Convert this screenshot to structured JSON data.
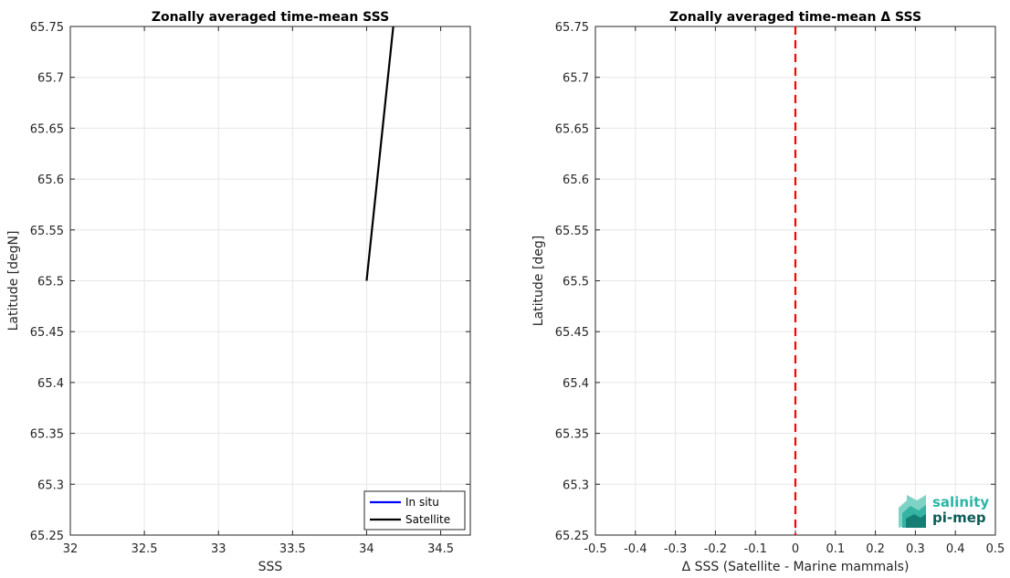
{
  "chart_data": [
    {
      "type": "line",
      "title": "Zonally averaged time-mean SSS",
      "xlabel": "SSS",
      "ylabel": "Latitude [degN]",
      "xlim": [
        32,
        34.7
      ],
      "ylim": [
        65.25,
        65.75
      ],
      "xticks": [
        "32",
        "32.5",
        "33",
        "33.5",
        "34",
        "34.5"
      ],
      "yticks": [
        "65.25",
        "65.3",
        "65.35",
        "65.4",
        "65.45",
        "65.5",
        "65.55",
        "65.6",
        "65.65",
        "65.7",
        "65.75"
      ],
      "grid": true,
      "legend_position": "bottom-right",
      "series": [
        {
          "name": "In situ",
          "color": "#0000ff",
          "points": []
        },
        {
          "name": "Satellite",
          "color": "#000000",
          "points": [
            [
              34.0,
              65.5
            ],
            [
              34.18,
              65.75
            ]
          ]
        }
      ]
    },
    {
      "type": "line",
      "title": "Zonally averaged time-mean Δ SSS",
      "xlabel": "Δ SSS (Satellite - Marine mammals)",
      "ylabel": "Latitude [deg]",
      "xlim": [
        -0.5,
        0.5
      ],
      "ylim": [
        65.25,
        65.75
      ],
      "xticks": [
        "-0.5",
        "-0.4",
        "-0.3",
        "-0.2",
        "-0.1",
        "0",
        "0.1",
        "0.2",
        "0.3",
        "0.4",
        "0.5"
      ],
      "yticks": [
        "65.25",
        "65.3",
        "65.35",
        "65.4",
        "65.45",
        "65.5",
        "65.55",
        "65.6",
        "65.65",
        "65.7",
        "65.75"
      ],
      "grid": true,
      "reference_line": {
        "x": 0,
        "color": "#ff0000",
        "style": "dashed"
      }
    }
  ],
  "logo": {
    "line1": "salinity",
    "line2": "pi-mep"
  }
}
